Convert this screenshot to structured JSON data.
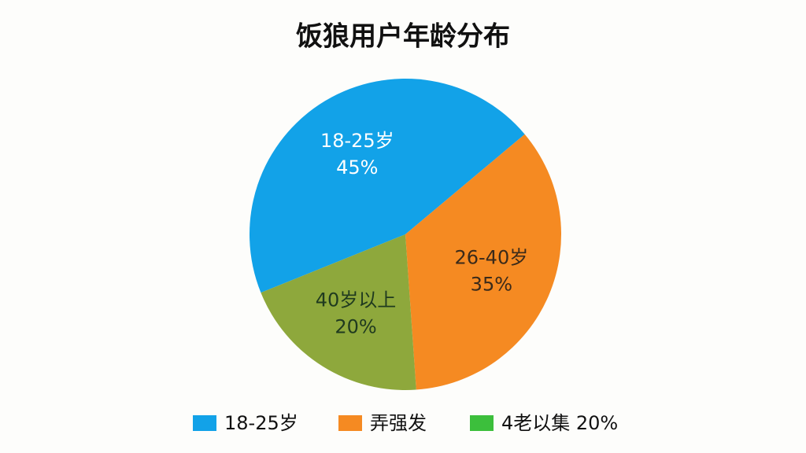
{
  "chart_data": {
    "type": "pie",
    "title": "饭狼用户年龄分布",
    "categories": [
      "18-25岁",
      "26-40岁",
      "40岁以上"
    ],
    "values": [
      45,
      35,
      20
    ],
    "value_labels": [
      "45%",
      "35%",
      "20%"
    ],
    "colors": [
      "#12a2e8",
      "#f58a22",
      "#8ea83c"
    ],
    "legend": {
      "labels": [
        "18-25岁",
        "弄强发",
        "4老以集 20%"
      ],
      "colors": [
        "#12a2e8",
        "#f58a22",
        "#3cbf3c"
      ],
      "position": "bottom"
    }
  }
}
